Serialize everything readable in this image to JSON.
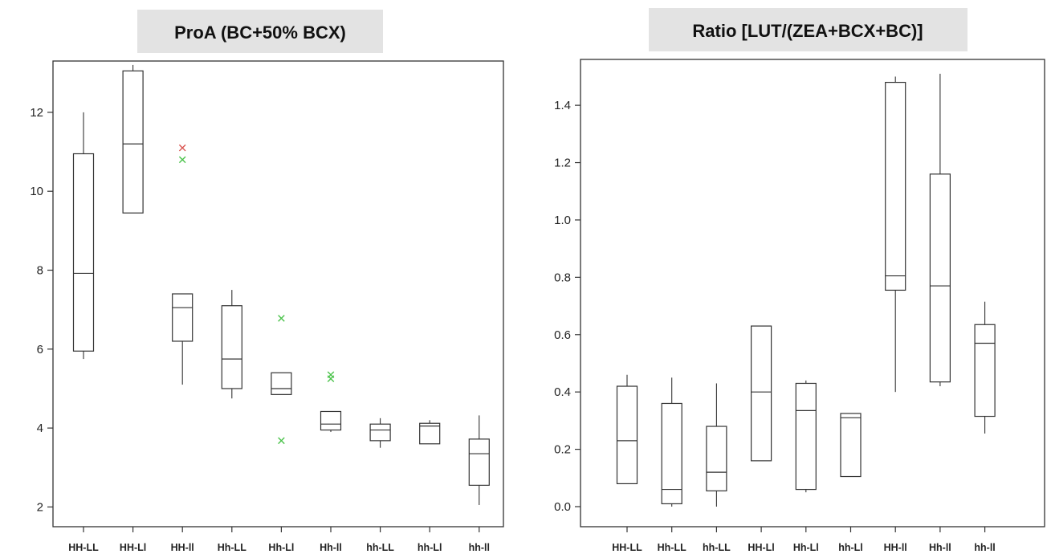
{
  "chart_data": [
    {
      "type": "box",
      "title": "ProA (BC+50% BCX)",
      "xlabel": "",
      "ylabel": "",
      "ylim": [
        1.5,
        13.3
      ],
      "yticks": [
        2,
        4,
        6,
        8,
        10,
        12
      ],
      "grid": false,
      "categories": [
        "HH-LL",
        "HH-Ll",
        "HH-ll",
        "Hh-LL",
        "Hh-Ll",
        "Hh-ll",
        "hh-LL",
        "hh-Ll",
        "hh-ll"
      ],
      "boxes": [
        {
          "min": 5.75,
          "q1": 5.95,
          "median": 7.92,
          "q3": 10.95,
          "max": 12.0,
          "outliers": []
        },
        {
          "min": 9.45,
          "q1": 9.45,
          "median": 11.2,
          "q3": 13.05,
          "max": 13.2,
          "outliers": []
        },
        {
          "min": 5.1,
          "q1": 6.2,
          "median": 7.05,
          "q3": 7.4,
          "max": 7.4,
          "outliers": [
            {
              "value": 11.1,
              "color": "#d9534f"
            },
            {
              "value": 10.8,
              "color": "#4cc34c"
            }
          ]
        },
        {
          "min": 4.75,
          "q1": 5.0,
          "median": 5.75,
          "q3": 7.1,
          "max": 7.5,
          "outliers": []
        },
        {
          "min": 4.85,
          "q1": 4.85,
          "median": 5.0,
          "q3": 5.4,
          "max": 5.4,
          "outliers": [
            {
              "value": 6.78,
              "color": "#4cc34c"
            },
            {
              "value": 3.68,
              "color": "#4cc34c"
            }
          ]
        },
        {
          "min": 3.9,
          "q1": 3.95,
          "median": 4.1,
          "q3": 4.42,
          "max": 4.42,
          "outliers": [
            {
              "value": 5.35,
              "color": "#4cc34c"
            },
            {
              "value": 5.25,
              "color": "#4cc34c"
            }
          ]
        },
        {
          "min": 3.5,
          "q1": 3.68,
          "median": 3.95,
          "q3": 4.1,
          "max": 4.25,
          "outliers": []
        },
        {
          "min": 3.6,
          "q1": 3.6,
          "median": 4.05,
          "q3": 4.12,
          "max": 4.2,
          "outliers": []
        },
        {
          "min": 2.05,
          "q1": 2.55,
          "median": 3.35,
          "q3": 3.72,
          "max": 4.32,
          "outliers": []
        }
      ]
    },
    {
      "type": "box",
      "title": "Ratio [LUT/(ZEA+BCX+BC)]",
      "xlabel": "",
      "ylabel": "",
      "ylim": [
        -0.07,
        1.56
      ],
      "yticks": [
        0.0,
        0.2,
        0.4,
        0.6,
        0.8,
        1.0,
        1.2,
        1.4
      ],
      "grid": false,
      "categories": [
        "HH-LL",
        "Hh-LL",
        "hh-LL",
        "HH-Ll",
        "Hh-Ll",
        "hh-Ll",
        "HH-ll",
        "Hh-ll",
        "hh-ll"
      ],
      "boxes": [
        {
          "min": 0.08,
          "q1": 0.08,
          "median": 0.23,
          "q3": 0.42,
          "max": 0.46,
          "outliers": []
        },
        {
          "min": 0.0,
          "q1": 0.01,
          "median": 0.06,
          "q3": 0.36,
          "max": 0.45,
          "outliers": []
        },
        {
          "min": 0.0,
          "q1": 0.055,
          "median": 0.12,
          "q3": 0.28,
          "max": 0.43,
          "outliers": []
        },
        {
          "min": 0.16,
          "q1": 0.16,
          "median": 0.4,
          "q3": 0.63,
          "max": 0.63,
          "outliers": []
        },
        {
          "min": 0.05,
          "q1": 0.06,
          "median": 0.335,
          "q3": 0.43,
          "max": 0.44,
          "outliers": []
        },
        {
          "min": 0.105,
          "q1": 0.105,
          "median": 0.31,
          "q3": 0.325,
          "max": 0.325,
          "outliers": []
        },
        {
          "min": 0.4,
          "q1": 0.755,
          "median": 0.805,
          "q3": 1.48,
          "max": 1.5,
          "outliers": []
        },
        {
          "min": 0.42,
          "q1": 0.435,
          "median": 0.77,
          "q3": 1.16,
          "max": 1.51,
          "outliers": []
        },
        {
          "min": 0.255,
          "q1": 0.315,
          "median": 0.57,
          "q3": 0.635,
          "max": 0.715,
          "outliers": []
        }
      ]
    }
  ]
}
